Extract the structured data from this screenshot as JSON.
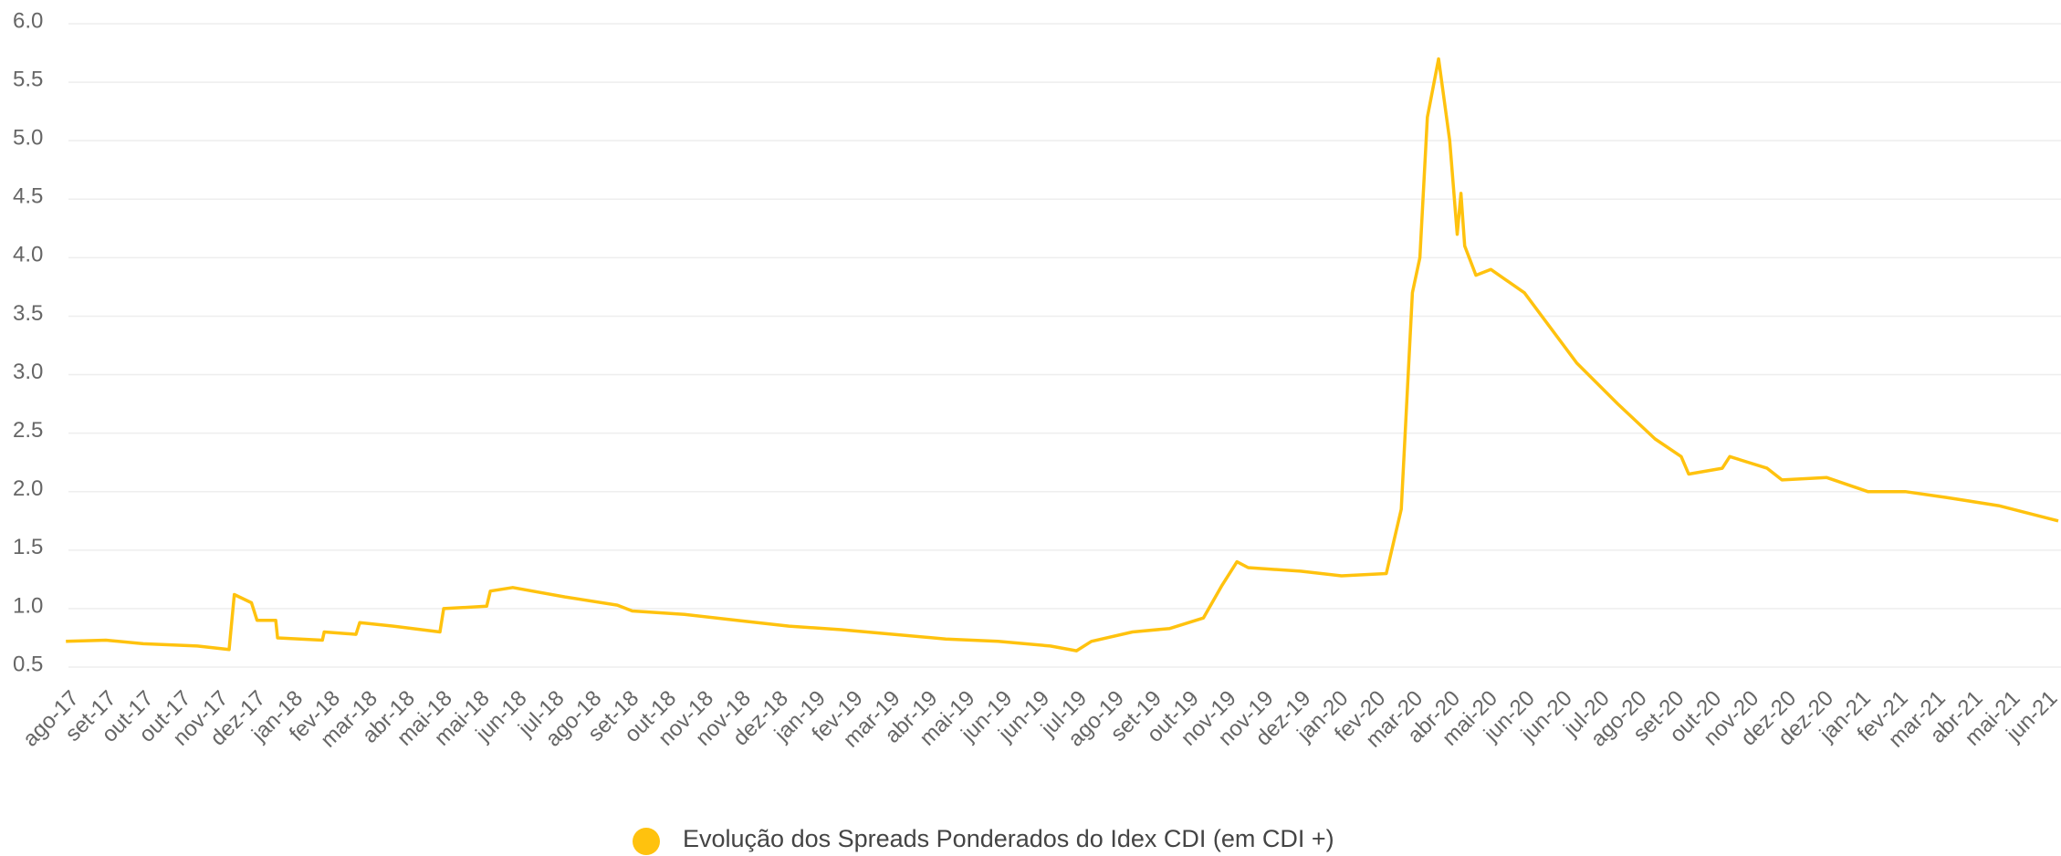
{
  "chart_data": {
    "type": "line",
    "x": [
      -0.07,
      1,
      2,
      3.45,
      4.3,
      4.44,
      4.9,
      5.05,
      5.55,
      5.6,
      6.8,
      6.85,
      7.7,
      7.8,
      8.7,
      9.95,
      10.05,
      11.2,
      11.3,
      11.9,
      13.3,
      14.7,
      15.1,
      16.5,
      17.9,
      19.3,
      20.7,
      22.1,
      23.5,
      24.9,
      26.3,
      27,
      27.4,
      28.5,
      29.5,
      30.4,
      30.9,
      31.3,
      31.6,
      33,
      34.1,
      35.3,
      35.7,
      36,
      36.2,
      36.4,
      36.7,
      37,
      37.2,
      37.3,
      37.4,
      37.7,
      38.1,
      39,
      39.7,
      40.4,
      41.5,
      42.5,
      43.2,
      43.4,
      44.3,
      44.5,
      45.5,
      45.9,
      47.1,
      48.2,
      49.2,
      50.3,
      51.7,
      53.3
    ],
    "series": [
      {
        "name": "Evolução dos Spreads Ponderados do Idex CDI (em CDI +)",
        "color": "#ffc20e",
        "values": [
          0.72,
          0.73,
          0.7,
          0.68,
          0.65,
          1.12,
          1.05,
          0.9,
          0.9,
          0.75,
          0.73,
          0.8,
          0.78,
          0.88,
          0.85,
          0.8,
          1.0,
          1.02,
          1.15,
          1.18,
          1.1,
          1.03,
          0.98,
          0.95,
          0.9,
          0.85,
          0.82,
          0.78,
          0.74,
          0.72,
          0.68,
          0.64,
          0.72,
          0.8,
          0.83,
          0.92,
          1.2,
          1.4,
          1.35,
          1.32,
          1.28,
          1.3,
          1.85,
          3.7,
          4.0,
          5.2,
          5.7,
          5.0,
          4.2,
          4.55,
          4.1,
          3.85,
          3.9,
          3.7,
          3.4,
          3.1,
          2.75,
          2.45,
          2.3,
          2.15,
          2.2,
          2.3,
          2.2,
          2.1,
          2.12,
          2.0,
          2.0,
          1.95,
          1.88,
          1.75
        ]
      }
    ],
    "xlim": [
      -0.1,
      53.3
    ],
    "xticks": [
      {
        "value": 0,
        "label": "ago-17"
      },
      {
        "value": 1,
        "label": "set-17"
      },
      {
        "value": 2,
        "label": "out-17"
      },
      {
        "value": 3,
        "label": "out-17"
      },
      {
        "value": 4,
        "label": "nov-17"
      },
      {
        "value": 5,
        "label": "dez-17"
      },
      {
        "value": 6,
        "label": "jan-18"
      },
      {
        "value": 7,
        "label": "fev-18"
      },
      {
        "value": 8,
        "label": "mar-18"
      },
      {
        "value": 9,
        "label": "abr-18"
      },
      {
        "value": 10,
        "label": "mai-18"
      },
      {
        "value": 11,
        "label": "mai-18"
      },
      {
        "value": 12,
        "label": "jun-18"
      },
      {
        "value": 13,
        "label": "jul-18"
      },
      {
        "value": 14,
        "label": "ago-18"
      },
      {
        "value": 15,
        "label": "set-18"
      },
      {
        "value": 16,
        "label": "out-18"
      },
      {
        "value": 17,
        "label": "nov-18"
      },
      {
        "value": 18,
        "label": "nov-18"
      },
      {
        "value": 19,
        "label": "dez-18"
      },
      {
        "value": 20,
        "label": "jan-19"
      },
      {
        "value": 21,
        "label": "fev-19"
      },
      {
        "value": 22,
        "label": "mar-19"
      },
      {
        "value": 23,
        "label": "abr-19"
      },
      {
        "value": 24,
        "label": "mai-19"
      },
      {
        "value": 25,
        "label": "jun-19"
      },
      {
        "value": 26,
        "label": "jun-19"
      },
      {
        "value": 27,
        "label": "jul-19"
      },
      {
        "value": 28,
        "label": "ago-19"
      },
      {
        "value": 29,
        "label": "set-19"
      },
      {
        "value": 30,
        "label": "out-19"
      },
      {
        "value": 31,
        "label": "nov-19"
      },
      {
        "value": 32,
        "label": "nov-19"
      },
      {
        "value": 33,
        "label": "dez-19"
      },
      {
        "value": 34,
        "label": "jan-20"
      },
      {
        "value": 35,
        "label": "fev-20"
      },
      {
        "value": 36,
        "label": "mar-20"
      },
      {
        "value": 37,
        "label": "abr-20"
      },
      {
        "value": 38,
        "label": "mai-20"
      },
      {
        "value": 39,
        "label": "jun-20"
      },
      {
        "value": 40,
        "label": "jun-20"
      },
      {
        "value": 41,
        "label": "jul-20"
      },
      {
        "value": 42,
        "label": "ago-20"
      },
      {
        "value": 43,
        "label": "set-20"
      },
      {
        "value": 44,
        "label": "out-20"
      },
      {
        "value": 45,
        "label": "nov-20"
      },
      {
        "value": 46,
        "label": "dez-20"
      },
      {
        "value": 47,
        "label": "dez-20"
      },
      {
        "value": 48,
        "label": "jan-21"
      },
      {
        "value": 49,
        "label": "fev-21"
      },
      {
        "value": 50,
        "label": "mar-21"
      },
      {
        "value": 51,
        "label": "abr-21"
      },
      {
        "value": 52,
        "label": "mai-21"
      },
      {
        "value": 53,
        "label": "jun-21"
      }
    ],
    "ylim": [
      0.5,
      6.0
    ],
    "yticks": [
      {
        "value": 0.5,
        "label": "0.5"
      },
      {
        "value": 1,
        "label": "1.0"
      },
      {
        "value": 1.5,
        "label": "1.5"
      },
      {
        "value": 2,
        "label": "2.0"
      },
      {
        "value": 2.5,
        "label": "2.5"
      },
      {
        "value": 3,
        "label": "3.0"
      },
      {
        "value": 3.5,
        "label": "3.5"
      },
      {
        "value": 4,
        "label": "4.0"
      },
      {
        "value": 4.5,
        "label": "4.5"
      },
      {
        "value": 5,
        "label": "5.0"
      },
      {
        "value": 5.5,
        "label": "5.5"
      },
      {
        "value": 6,
        "label": "6.0"
      }
    ],
    "grid": true,
    "legend": "bottom"
  }
}
